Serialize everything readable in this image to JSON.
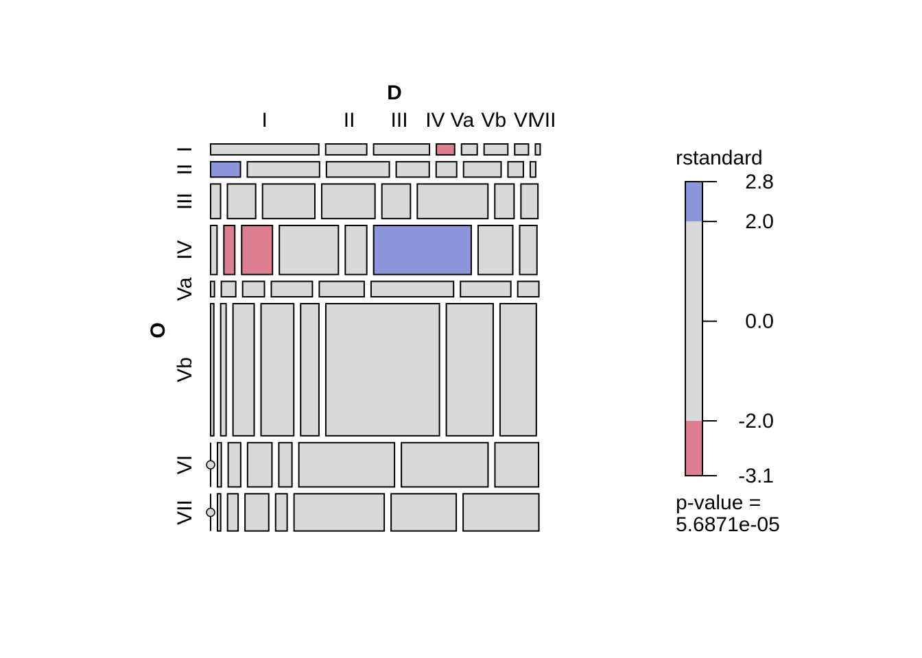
{
  "chart_data": {
    "type": "mosaic",
    "col_variable": "D",
    "row_variable": "O",
    "col_categories": [
      "I",
      "II",
      "III",
      "IV",
      "Va",
      "Vb",
      "VI",
      "VII"
    ],
    "row_categories": [
      "I",
      "II",
      "III",
      "IV",
      "Va",
      "Vb",
      "VI",
      "VII"
    ],
    "col_shares": [
      0.336,
      0.149,
      0.12,
      0.061,
      0.065,
      0.088,
      0.055,
      0.026
    ],
    "row_shares": [
      0.034,
      0.048,
      0.108,
      0.153,
      0.048,
      0.412,
      0.138,
      0.116
    ],
    "rows": [
      {
        "category": "I",
        "cell_shares": [
          0.337,
          0.128,
          0.174,
          0.057,
          0.049,
          0.074,
          0.043,
          0.015
        ],
        "residual_class": [
          0,
          0,
          0,
          -1,
          0,
          0,
          0,
          0
        ]
      },
      {
        "category": "II",
        "cell_shares": [
          0.093,
          0.225,
          0.196,
          0.103,
          0.064,
          0.117,
          0.048,
          0.017
        ],
        "residual_class": [
          1,
          0,
          0,
          0,
          0,
          0,
          0,
          0
        ]
      },
      {
        "category": "III",
        "cell_shares": [
          0.031,
          0.088,
          0.163,
          0.166,
          0.089,
          0.22,
          0.06,
          0.053
        ],
        "residual_class": [
          0,
          0,
          0,
          0,
          0,
          0,
          0,
          0
        ]
      },
      {
        "category": "IV",
        "cell_shares": [
          0.02,
          0.034,
          0.096,
          0.184,
          0.067,
          0.304,
          0.108,
          0.054
        ],
        "residual_class": [
          0,
          -1,
          -1,
          0,
          0,
          1,
          0,
          0
        ]
      },
      {
        "category": "Va",
        "cell_shares": [
          0.012,
          0.045,
          0.068,
          0.128,
          0.14,
          0.257,
          0.157,
          0.066
        ],
        "residual_class": [
          0,
          0,
          0,
          0,
          0,
          0,
          0,
          0
        ]
      },
      {
        "category": "Vb",
        "cell_shares": [
          0.01,
          0.017,
          0.066,
          0.102,
          0.057,
          0.354,
          0.146,
          0.113
        ],
        "residual_class": [
          0,
          0,
          0,
          0,
          0,
          0,
          0,
          0
        ]
      },
      {
        "category": "VI",
        "cell_shares": [
          0.0,
          0.012,
          0.039,
          0.076,
          0.041,
          0.298,
          0.27,
          0.136
        ],
        "residual_class": [
          0,
          0,
          0,
          0,
          0,
          0,
          0,
          0
        ]
      },
      {
        "category": "VII",
        "cell_shares": [
          0.0,
          0.01,
          0.033,
          0.074,
          0.036,
          0.281,
          0.203,
          0.236
        ],
        "residual_class": [
          0,
          0,
          0,
          0,
          0,
          0,
          0,
          0
        ]
      }
    ],
    "legend": {
      "title": "rstandard",
      "ticks": [
        "2.8",
        "2.0",
        "0.0",
        "-2.0",
        "-3.1"
      ],
      "bands": [
        {
          "from": 2.0,
          "to": 2.8,
          "color": "#8d95db"
        },
        {
          "from": -2.0,
          "to": 2.0,
          "color": "#d9d9d9"
        },
        {
          "from": -3.1,
          "to": -2.0,
          "color": "#de7f91"
        }
      ],
      "pvalue_line1": "p-value =",
      "pvalue_line2": "5.6871e-05"
    },
    "colors": {
      "positive": "#8d95db",
      "neutral": "#d9d9d9",
      "negative": "#de7f91"
    }
  }
}
